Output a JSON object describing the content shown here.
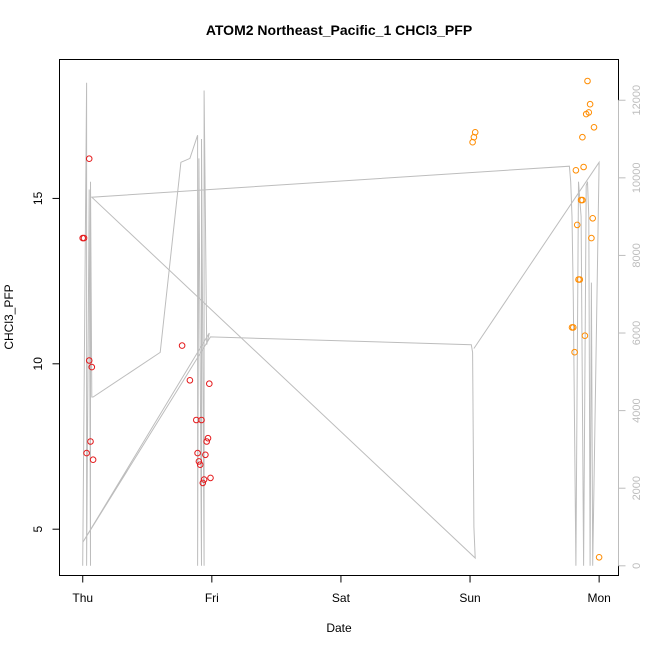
{
  "chart_data": {
    "type": "scatter",
    "title": "ATOM2 Northeast_Pacific_1 CHCl3_PFP",
    "xlabel": "Date",
    "ylabel": "CHCl3_PFP",
    "x_ticks": [
      "Thu",
      "Fri",
      "Sat",
      "Sun",
      "Mon"
    ],
    "x_range_days": [
      -0.18,
      4.15
    ],
    "ylim": [
      3.6,
      19.2
    ],
    "y_ticks": [
      5,
      10,
      15
    ],
    "y2lim": [
      -250,
      13050
    ],
    "y2_ticks": [
      0,
      2000,
      4000,
      6000,
      8000,
      10000,
      12000
    ],
    "colors": {
      "red_series": "#e41a1c",
      "orange_series": "#ff8c00",
      "line": "#bdbdbd",
      "axis": "#000000",
      "right_axis": "#bdbdbd"
    },
    "series": [
      {
        "color": "#e41a1c",
        "marker": "open-circle",
        "x": [
          0.0,
          0.01,
          0.03,
          0.05,
          0.05,
          0.06,
          0.07,
          0.08,
          0.77,
          0.83,
          0.88,
          0.89,
          0.9,
          0.91,
          0.92,
          0.93,
          0.94,
          0.95,
          0.96,
          0.97,
          0.98,
          0.99
        ],
        "y": [
          13.8,
          13.8,
          7.3,
          16.2,
          10.1,
          7.65,
          9.9,
          7.1,
          10.55,
          9.5,
          8.3,
          7.3,
          7.05,
          6.95,
          8.3,
          6.4,
          6.5,
          7.25,
          7.65,
          7.75,
          9.4,
          6.55
        ]
      },
      {
        "color": "#ff8c00",
        "marker": "open-circle",
        "x": [
          3.02,
          3.03,
          3.04,
          3.79,
          3.8,
          3.81,
          3.82,
          3.83,
          3.84,
          3.85,
          3.86,
          3.87,
          3.87,
          3.88,
          3.89,
          3.9,
          3.91,
          3.92,
          3.93,
          3.94,
          3.95,
          3.96,
          4.0
        ],
        "y": [
          16.7,
          16.85,
          17.0,
          11.1,
          11.1,
          10.35,
          15.85,
          14.2,
          12.55,
          12.55,
          14.95,
          14.95,
          16.85,
          15.95,
          10.85,
          17.55,
          18.55,
          17.6,
          17.85,
          13.8,
          14.4,
          17.15,
          4.15
        ]
      }
    ],
    "line_series": {
      "axis": "right",
      "color": "#bdbdbd",
      "x": [
        0.0,
        0.03,
        0.03,
        0.05,
        0.06,
        0.06,
        0.07,
        0.08,
        0.6,
        0.76,
        0.83,
        0.89,
        0.89,
        0.9,
        0.92,
        0.92,
        0.94,
        0.94,
        0.96,
        0.97,
        0.98,
        0.0,
        0.99,
        3.01,
        3.02,
        3.03,
        3.04,
        0.07,
        3.77,
        3.78,
        3.79,
        3.8,
        3.82,
        3.84,
        3.86,
        3.88,
        3.9,
        3.91,
        3.92,
        3.93,
        3.94,
        3.95,
        4.0,
        3.03
      ],
      "y": [
        0,
        12450,
        0,
        9700,
        0,
        9900,
        4350,
        4350,
        5500,
        10400,
        10500,
        11100,
        0,
        10500,
        0,
        11000,
        0,
        12250,
        5700,
        5850,
        6000,
        600,
        5900,
        5700,
        5500,
        1000,
        200,
        9500,
        10300,
        9900,
        9000,
        6900,
        0,
        9900,
        9000,
        0,
        9800,
        9900,
        9000,
        0,
        7300,
        0,
        10400,
        5600
      ]
    }
  }
}
